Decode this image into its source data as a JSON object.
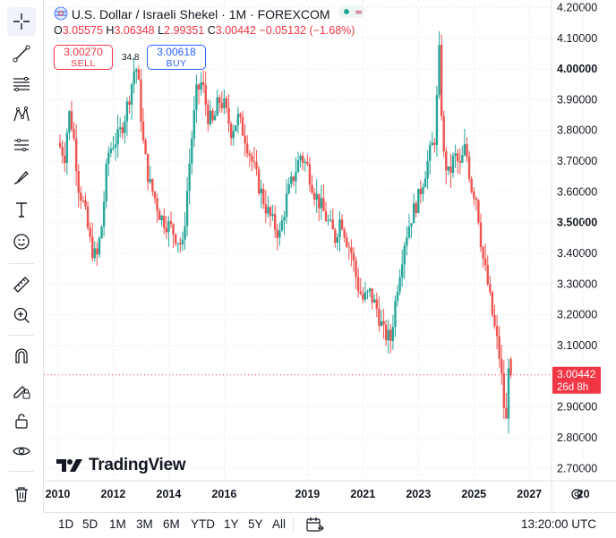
{
  "header": {
    "title": "U.S. Dollar / Israeli Shekel · 1M · FOREXCOM",
    "open_label": "O",
    "open": "3.05575",
    "high_label": "H",
    "high": "3.06348",
    "low_label": "L",
    "low": "2.99351",
    "close_label": "C",
    "close": "3.00442",
    "change": "−0.05132 (−1.68%)"
  },
  "trade": {
    "sell_price": "3.00270",
    "sell_label": "SELL",
    "buy_price": "3.00618",
    "buy_label": "BUY",
    "spread": "34.8"
  },
  "price_label": {
    "value": "3.00442",
    "countdown": "26d 8h"
  },
  "logo_text": "TradingView",
  "bottom": {
    "ranges": [
      "1D",
      "5D",
      "1M",
      "3M",
      "6M",
      "YTD",
      "1Y",
      "5Y",
      "All"
    ],
    "clock": "13:20:00 UTC"
  },
  "tools": [
    "crosshair-icon",
    "trend-line-icon",
    "fib-icon",
    "pattern-icon",
    "forecast-icon",
    "brush-icon",
    "text-icon",
    "emoji-icon",
    "ruler-icon",
    "zoom-in-icon",
    "magnet-icon",
    "lock-drawing-icon",
    "lock-icon",
    "eye-icon",
    "trash-icon"
  ],
  "colors": {
    "up": "#26a69a",
    "down": "#ef5350",
    "accent": "#2962ff",
    "price_line": "#f23645"
  },
  "chart_data": {
    "type": "candlestick",
    "symbol": "USD/ILS",
    "interval": "1M",
    "y_ticks": [
      "4.20000",
      "4.10000",
      "4.00000",
      "3.90000",
      "3.80000",
      "3.70000",
      "3.60000",
      "3.50000",
      "3.40000",
      "3.30000",
      "3.20000",
      "3.10000",
      "2.90000",
      "2.80000",
      "2.70000"
    ],
    "bold_ticks": [
      "4.00000",
      "3.50000"
    ],
    "ylim": [
      2.66,
      4.21
    ],
    "x_ticks": [
      "2010",
      "2012",
      "2014",
      "2016",
      "2019",
      "2021",
      "2023",
      "2025",
      "2027",
      "20"
    ],
    "xlim": [
      2009.5,
      2027.8
    ],
    "last_price": 3.00442,
    "series": [
      {
        "t": 2010.0,
        "c": 3.76
      },
      {
        "t": 2010.25,
        "c": 3.72
      },
      {
        "t": 2010.4,
        "c": 3.86
      },
      {
        "t": 2010.55,
        "c": 3.8
      },
      {
        "t": 2010.75,
        "c": 3.62
      },
      {
        "t": 2010.95,
        "c": 3.55
      },
      {
        "t": 2011.2,
        "c": 3.42
      },
      {
        "t": 2011.4,
        "c": 3.38
      },
      {
        "t": 2011.6,
        "c": 3.5
      },
      {
        "t": 2011.8,
        "c": 3.72
      },
      {
        "t": 2012.0,
        "c": 3.76
      },
      {
        "t": 2012.2,
        "c": 3.78
      },
      {
        "t": 2012.4,
        "c": 3.84
      },
      {
        "t": 2012.6,
        "c": 3.92
      },
      {
        "t": 2012.8,
        "c": 4.02
      },
      {
        "t": 2012.9,
        "c": 3.96
      },
      {
        "t": 2013.1,
        "c": 3.74
      },
      {
        "t": 2013.3,
        "c": 3.63
      },
      {
        "t": 2013.5,
        "c": 3.58
      },
      {
        "t": 2013.7,
        "c": 3.52
      },
      {
        "t": 2013.9,
        "c": 3.5
      },
      {
        "t": 2014.1,
        "c": 3.48
      },
      {
        "t": 2014.3,
        "c": 3.45
      },
      {
        "t": 2014.5,
        "c": 3.42
      },
      {
        "t": 2014.8,
        "c": 3.75
      },
      {
        "t": 2015.0,
        "c": 3.92
      },
      {
        "t": 2015.2,
        "c": 3.96
      },
      {
        "t": 2015.4,
        "c": 3.85
      },
      {
        "t": 2015.6,
        "c": 3.82
      },
      {
        "t": 2015.8,
        "c": 3.9
      },
      {
        "t": 2016.0,
        "c": 3.88
      },
      {
        "t": 2016.25,
        "c": 3.8
      },
      {
        "t": 2016.5,
        "c": 3.84
      },
      {
        "t": 2016.75,
        "c": 3.78
      },
      {
        "t": 2017.0,
        "c": 3.7
      },
      {
        "t": 2017.25,
        "c": 3.62
      },
      {
        "t": 2017.5,
        "c": 3.55
      },
      {
        "t": 2017.75,
        "c": 3.5
      },
      {
        "t": 2018.0,
        "c": 3.46
      },
      {
        "t": 2018.25,
        "c": 3.58
      },
      {
        "t": 2018.5,
        "c": 3.65
      },
      {
        "t": 2018.75,
        "c": 3.72
      },
      {
        "t": 2019.0,
        "c": 3.68
      },
      {
        "t": 2019.25,
        "c": 3.6
      },
      {
        "t": 2019.5,
        "c": 3.55
      },
      {
        "t": 2019.75,
        "c": 3.5
      },
      {
        "t": 2020.0,
        "c": 3.45
      },
      {
        "t": 2020.2,
        "c": 3.52
      },
      {
        "t": 2020.4,
        "c": 3.45
      },
      {
        "t": 2020.6,
        "c": 3.4
      },
      {
        "t": 2020.8,
        "c": 3.3
      },
      {
        "t": 2021.0,
        "c": 3.25
      },
      {
        "t": 2021.25,
        "c": 3.27
      },
      {
        "t": 2021.5,
        "c": 3.22
      },
      {
        "t": 2021.75,
        "c": 3.14
      },
      {
        "t": 2022.0,
        "c": 3.12
      },
      {
        "t": 2022.25,
        "c": 3.3
      },
      {
        "t": 2022.5,
        "c": 3.44
      },
      {
        "t": 2022.75,
        "c": 3.52
      },
      {
        "t": 2023.0,
        "c": 3.58
      },
      {
        "t": 2023.2,
        "c": 3.65
      },
      {
        "t": 2023.4,
        "c": 3.72
      },
      {
        "t": 2023.6,
        "c": 3.78
      },
      {
        "t": 2023.75,
        "c": 4.05
      },
      {
        "t": 2023.9,
        "c": 3.72
      },
      {
        "t": 2024.1,
        "c": 3.65
      },
      {
        "t": 2024.3,
        "c": 3.72
      },
      {
        "t": 2024.5,
        "c": 3.68
      },
      {
        "t": 2024.7,
        "c": 3.75
      },
      {
        "t": 2024.9,
        "c": 3.62
      },
      {
        "t": 2025.1,
        "c": 3.58
      },
      {
        "t": 2025.3,
        "c": 3.4
      },
      {
        "t": 2025.5,
        "c": 3.3
      },
      {
        "t": 2025.7,
        "c": 3.18
      },
      {
        "t": 2025.9,
        "c": 3.08
      },
      {
        "t": 2026.05,
        "c": 2.95
      },
      {
        "t": 2026.15,
        "c": 2.81
      },
      {
        "t": 2026.25,
        "c": 3.05
      },
      {
        "t": 2026.35,
        "c": 3.00442
      }
    ]
  }
}
